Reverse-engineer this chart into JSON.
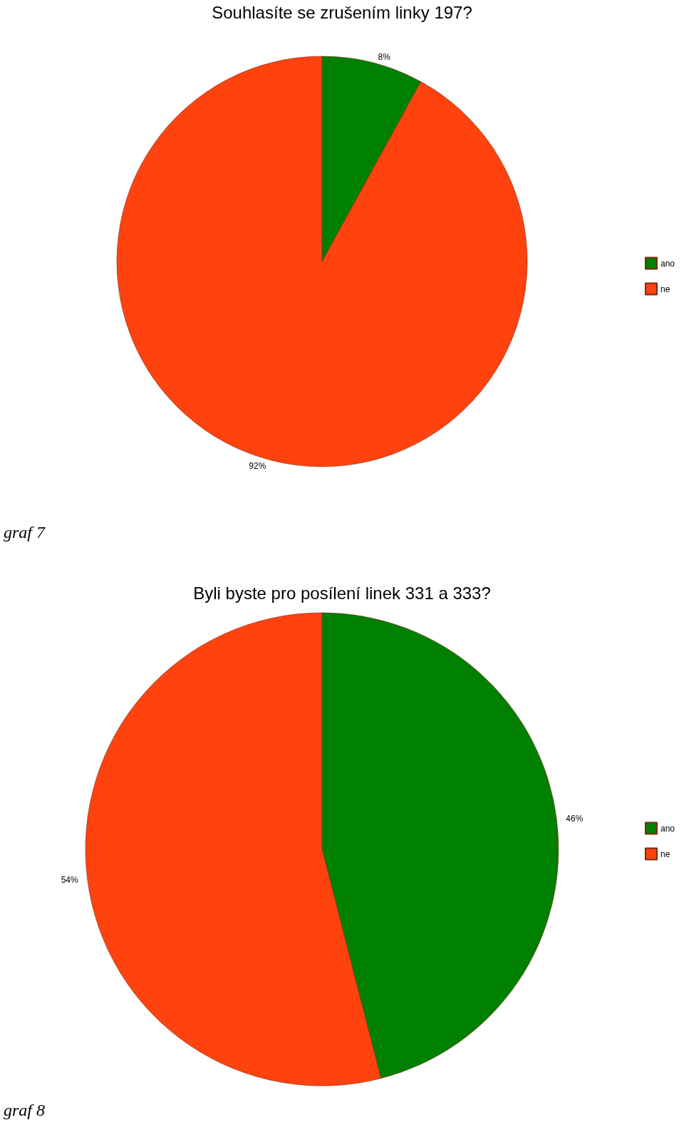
{
  "chart_data": [
    {
      "type": "pie",
      "title": "Souhlasíte se zrušením linky 197?",
      "categories": [
        "ano",
        "ne"
      ],
      "values": [
        8,
        92
      ],
      "colors": [
        "#008000",
        "#ff420e"
      ],
      "value_labels": [
        "8%",
        "92%"
      ],
      "legend": "right",
      "annotations": [
        "graf 7"
      ]
    },
    {
      "type": "pie",
      "title": "Byli byste pro posílení linek 331 a 333?",
      "categories": [
        "ano",
        "ne"
      ],
      "values": [
        46,
        54
      ],
      "colors": [
        "#008000",
        "#ff420e"
      ],
      "value_labels": [
        "46%",
        "54%"
      ],
      "legend": "right",
      "annotations": [
        "graf 8"
      ]
    }
  ]
}
